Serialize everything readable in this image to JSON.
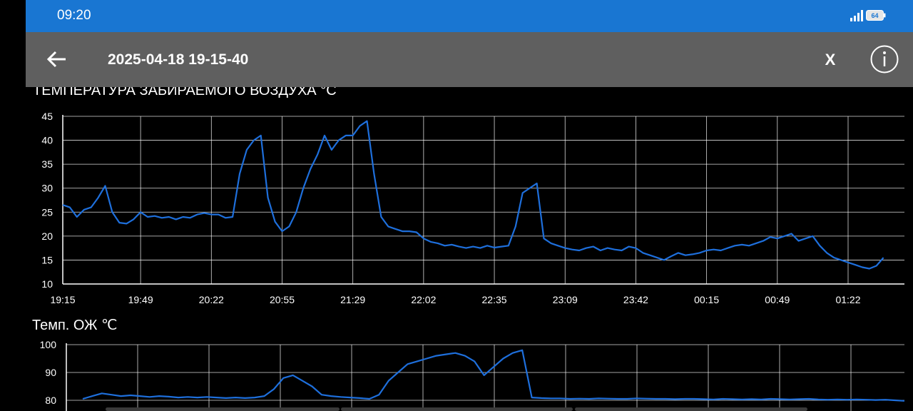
{
  "status_bar": {
    "time": "09:20",
    "battery_level": "64",
    "signal_icon": "signal-bars-icon"
  },
  "app_bar": {
    "title": "2025-04-18 19-15-40",
    "back_icon": "arrow-left-icon",
    "close_label": "X",
    "info_icon": "info-circle-icon"
  },
  "colors": {
    "status_bar": "#1976d2",
    "app_bar": "#5f5f5f",
    "series": "#1e6fdc",
    "background": "#000000",
    "grid": "#ffffff"
  },
  "chart_data": [
    {
      "type": "line",
      "title": "ТЕМПЕРАТУРА ЗАБИРАЕМОГО ВОЗДУХА °С",
      "ylim": [
        10,
        45
      ],
      "yticks": [
        10,
        15,
        20,
        25,
        30,
        35,
        40,
        45
      ],
      "xticks": [
        "19:15",
        "19:49",
        "20:22",
        "20:55",
        "21:29",
        "22:02",
        "22:35",
        "23:09",
        "23:42",
        "00:15",
        "00:49",
        "01:22"
      ],
      "grid": true,
      "x": [
        "19:15",
        "19:18",
        "19:21",
        "19:24",
        "19:27",
        "19:30",
        "19:33",
        "19:36",
        "19:39",
        "19:42",
        "19:45",
        "19:48",
        "19:52",
        "19:55",
        "19:58",
        "20:02",
        "20:05",
        "20:08",
        "20:12",
        "20:15",
        "20:18",
        "20:22",
        "20:25",
        "20:28",
        "20:32",
        "20:35",
        "20:38",
        "20:42",
        "20:45",
        "20:48",
        "20:52",
        "20:55",
        "20:58",
        "21:02",
        "21:05",
        "21:08",
        "21:12",
        "21:15",
        "21:18",
        "21:22",
        "21:25",
        "21:29",
        "21:32",
        "21:35",
        "21:38",
        "21:42",
        "21:45",
        "21:48",
        "21:52",
        "21:55",
        "21:58",
        "22:02",
        "22:05",
        "22:08",
        "22:12",
        "22:15",
        "22:18",
        "22:22",
        "22:25",
        "22:28",
        "22:32",
        "22:35",
        "22:38",
        "22:42",
        "22:45",
        "22:48",
        "22:52",
        "22:55",
        "22:58",
        "23:02",
        "23:05",
        "23:09",
        "23:12",
        "23:15",
        "23:18",
        "23:22",
        "23:25",
        "23:28",
        "23:32",
        "23:35",
        "23:38",
        "23:42",
        "23:45",
        "23:48",
        "23:52",
        "23:55",
        "23:58",
        "00:02",
        "00:05",
        "00:08",
        "00:12",
        "00:15",
        "00:18",
        "00:22",
        "00:25",
        "00:28",
        "00:32",
        "00:35",
        "00:38",
        "00:42",
        "00:45",
        "00:49",
        "00:52",
        "00:55",
        "00:58",
        "01:02",
        "01:05",
        "01:08",
        "01:12",
        "01:15",
        "01:18",
        "01:22",
        "01:25",
        "01:28",
        "01:32",
        "01:35",
        "01:38"
      ],
      "values": [
        26.5,
        26,
        24,
        25.5,
        26,
        28,
        30.5,
        25,
        22.8,
        22.6,
        23.5,
        25,
        24,
        24.2,
        23.8,
        24,
        23.5,
        24,
        23.8,
        24.5,
        24.8,
        24.5,
        24.5,
        23.8,
        24,
        33,
        38,
        40,
        41,
        28,
        23,
        21,
        22,
        25,
        30,
        34,
        37,
        41,
        38,
        40,
        41,
        41,
        43,
        44,
        33,
        24,
        22,
        21.5,
        21,
        21,
        20.8,
        19.5,
        18.8,
        18.5,
        18,
        18.2,
        17.8,
        17.5,
        17.8,
        17.5,
        18,
        17.6,
        17.8,
        18,
        22,
        29,
        30,
        31,
        19.5,
        18.5,
        18,
        17.5,
        17.2,
        17,
        17.5,
        17.8,
        17,
        17.5,
        17.2,
        17,
        17.8,
        17.5,
        16.5,
        16,
        15.5,
        15,
        15.8,
        16.5,
        16,
        16.2,
        16.5,
        17,
        17.2,
        17,
        17.5,
        18,
        18.2,
        18,
        18.5,
        19,
        19.8,
        19.5,
        20,
        20.5,
        19,
        19.5,
        20,
        18,
        16.5,
        15.5,
        15,
        14.5,
        14,
        13.5,
        13.2,
        13.8,
        15.5
      ],
      "x_tick_index": [
        0,
        11,
        21,
        31,
        41,
        51,
        61,
        71,
        81,
        91,
        101,
        111
      ]
    },
    {
      "type": "line",
      "title": "Темп. ОЖ ℃",
      "ylim": [
        80,
        100
      ],
      "yticks": [
        80,
        90,
        100
      ],
      "grid": true,
      "values": [
        80.5,
        81.5,
        82.5,
        82,
        81.5,
        81.8,
        81.5,
        81.2,
        81.5,
        81.3,
        81,
        81.2,
        81,
        81.2,
        81,
        80.8,
        81,
        80.8,
        81,
        81.5,
        84,
        88,
        89,
        87,
        85,
        82,
        81.5,
        81.2,
        81,
        80.8,
        80.5,
        82,
        87,
        90,
        93,
        94,
        95,
        96,
        96.5,
        97,
        96,
        94,
        89,
        92,
        95,
        97,
        98,
        81,
        80.8,
        80.7,
        80.7,
        80.5,
        80.6,
        80.5,
        80.7,
        80.6,
        80.5,
        80.5,
        80.7,
        80.6,
        80.5,
        80.5,
        80.4,
        80.5,
        80.5,
        80.4,
        80.3,
        80.5,
        80.4,
        80.3,
        80.4,
        80.3,
        80.5,
        80.4,
        80.3,
        80.4,
        80.5,
        80.3,
        80.2,
        80.3,
        80.2,
        80.3,
        80.2,
        80.1,
        80.2,
        80,
        79.8
      ]
    }
  ]
}
